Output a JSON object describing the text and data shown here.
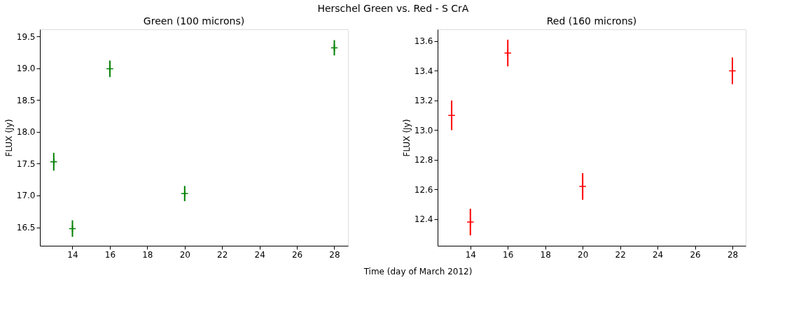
{
  "chart_data": [
    {
      "type": "scatter",
      "title": "Green (100 microns)",
      "xlabel": "Time (day of March 2012)",
      "ylabel": "FLUX (Jy)",
      "annotations": [
        "Herschel Green vs. Red - S CrA"
      ],
      "x": [
        13,
        14,
        16,
        20,
        28
      ],
      "series": [
        {
          "color": "#008000",
          "values": [
            17.53,
            16.48,
            18.99,
            17.03,
            19.32
          ],
          "errors": [
            0.14,
            0.13,
            0.13,
            0.12,
            0.12
          ]
        }
      ],
      "xlim": [
        12.26,
        28.73
      ],
      "xticks": [
        14,
        16,
        18,
        20,
        22,
        24,
        26,
        28
      ],
      "ylim": [
        16.21,
        19.61
      ],
      "yticks": [
        16.5,
        {
          "value": 17,
          "label": "17.0"
        },
        17.5,
        {
          "value": 18,
          "label": "18.0"
        },
        18.5,
        {
          "value": 19,
          "label": "19.0"
        },
        19.5
      ],
      "marker": "cross",
      "grid": false
    },
    {
      "type": "scatter",
      "title": "Red (160 microns)",
      "ylabel": "FLUX (Jy)",
      "x": [
        13,
        14,
        16,
        20,
        28
      ],
      "series": [
        {
          "color": "#ff0000",
          "values": [
            13.1,
            12.38,
            13.52,
            12.62,
            13.4
          ],
          "errors": [
            0.1,
            0.09,
            0.09,
            0.09,
            0.09
          ]
        }
      ],
      "xlim": [
        12.25,
        28.71
      ],
      "xticks": [
        14,
        16,
        18,
        20,
        22,
        24,
        26,
        28
      ],
      "ylim": [
        12.22,
        13.68
      ],
      "yticks": [
        12.4,
        12.6,
        12.8,
        {
          "value": 13,
          "label": "13.0"
        },
        13.2,
        13.4,
        13.6
      ],
      "marker": "cross",
      "grid": false
    }
  ]
}
